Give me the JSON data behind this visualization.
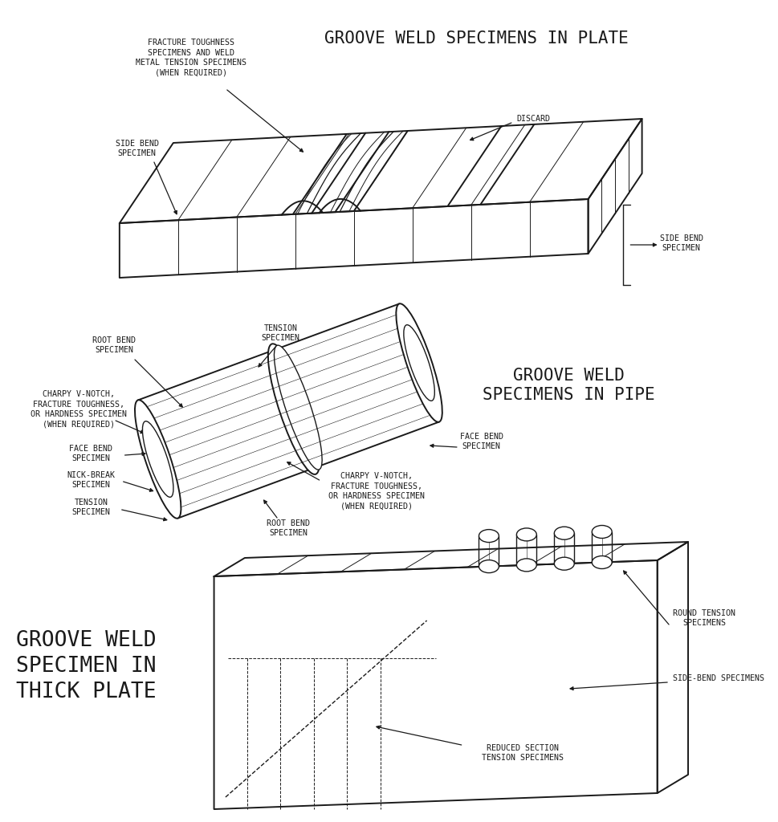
{
  "bg_color": "#ffffff",
  "line_color": "#1a1a1a",
  "title1": "GROOVE WELD SPECIMENS IN PLATE",
  "title2_line1": "GROOVE WELD",
  "title2_line2": "SPECIMENS IN PIPE",
  "title3_line1": "GROOVE WELD",
  "title3_line2": "SPECIMEN IN",
  "title3_line3": "THICK PLATE",
  "title_fontsize": 15,
  "label_fontsize": 7.2,
  "section1_labels": {
    "fracture_toughness": [
      "FRACTURE TOUGHNESS",
      "SPECIMENS AND WELD",
      "METAL TENSION SPECIMENS",
      "(WHEN REQUIRED)"
    ],
    "side_bend_left": [
      "SIDE BEND",
      "SPECIMEN"
    ],
    "discard": [
      "DISCARD"
    ],
    "side_bend_right": [
      "SIDE BEND",
      "SPECIMEN"
    ]
  },
  "section2_labels": {
    "root_bend_top": [
      "ROOT BEND",
      "SPECIMEN"
    ],
    "tension_top": [
      "TENSION",
      "SPECIMEN"
    ],
    "charpy_left": [
      "CHARPY V-NOTCH,",
      "FRACTURE TOUGHNESS,",
      "OR HARDNESS SPECIMEN",
      "(WHEN REQUIRED)"
    ],
    "face_bend_left": [
      "FACE BEND",
      "SPECIMEN"
    ],
    "nick_break": [
      "NICK-BREAK",
      "SPECIMEN"
    ],
    "tension_bottom": [
      "TENSION",
      "SPECIMEN"
    ],
    "face_bend_right": [
      "FACE BEND",
      "SPECIMEN"
    ],
    "charpy_right": [
      "CHARPY V-NOTCH,",
      "FRACTURE TOUGHNESS,",
      "OR HARDNESS SPECIMEN",
      "(WHEN REQUIRED)"
    ],
    "root_bend_bottom": [
      "ROOT BEND",
      "SPECIMEN"
    ]
  },
  "section3_labels": {
    "round_tension": [
      "ROUND TENSION",
      "SPECIMENS"
    ],
    "side_bend": [
      "SIDE-BEND SPECIMENS"
    ],
    "reduced_section": [
      "REDUCED SECTION",
      "TENSION SPECIMENS"
    ]
  }
}
